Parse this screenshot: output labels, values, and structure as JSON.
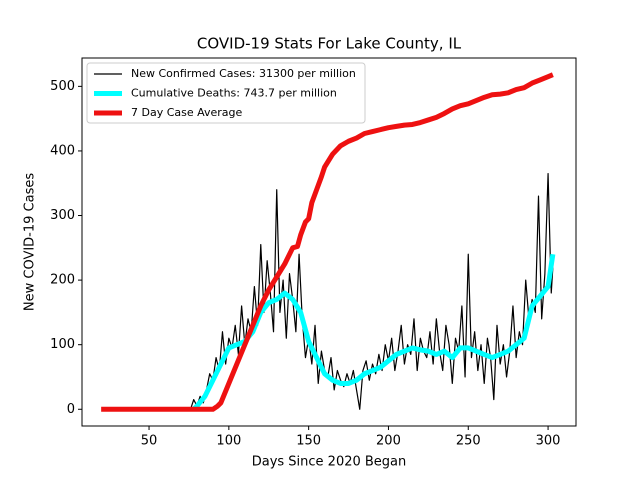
{
  "chart_data": {
    "type": "line",
    "title": "COVID-19 Stats For Lake County, IL",
    "x_label": "Days Since 2020 Began",
    "y_label": "New COVID-19 Cases",
    "xlim": [
      8,
      317.5
    ],
    "ylim": [
      -25.9,
      543.9
    ],
    "xticks": [
      50,
      100,
      150,
      200,
      250,
      300
    ],
    "yticks": [
      0,
      100,
      200,
      300,
      400,
      500
    ],
    "legend": "upper left",
    "series": [
      {
        "name": "New Confirmed Cases: 31300 per million",
        "color": "#000000",
        "width": 1.2,
        "x": [
          76,
          78,
          80,
          82,
          84,
          86,
          88,
          90,
          92,
          94,
          96,
          98,
          100,
          102,
          104,
          106,
          108,
          110,
          112,
          114,
          116,
          118,
          120,
          122,
          124,
          126,
          128,
          130,
          132,
          134,
          136,
          138,
          140,
          142,
          144,
          146,
          148,
          150,
          152,
          154,
          156,
          158,
          160,
          162,
          164,
          166,
          168,
          170,
          172,
          174,
          176,
          178,
          180,
          182,
          184,
          186,
          188,
          190,
          192,
          194,
          196,
          198,
          200,
          202,
          204,
          206,
          208,
          210,
          212,
          214,
          216,
          218,
          220,
          222,
          224,
          226,
          228,
          230,
          232,
          234,
          236,
          238,
          240,
          242,
          244,
          246,
          248,
          250,
          252,
          254,
          256,
          258,
          260,
          262,
          264,
          266,
          268,
          270,
          272,
          274,
          276,
          278,
          280,
          282,
          284,
          286,
          288,
          290,
          292,
          294,
          296,
          298,
          300,
          302,
          303
        ],
        "values": [
          0,
          15,
          5,
          20,
          10,
          30,
          55,
          45,
          80,
          60,
          120,
          70,
          110,
          95,
          130,
          85,
          160,
          100,
          140,
          120,
          190,
          130,
          255,
          150,
          230,
          180,
          120,
          340,
          150,
          200,
          110,
          210,
          170,
          120,
          240,
          140,
          80,
          110,
          70,
          130,
          40,
          90,
          60,
          50,
          80,
          30,
          60,
          45,
          35,
          55,
          40,
          60,
          30,
          0,
          60,
          75,
          45,
          70,
          55,
          85,
          60,
          100,
          75,
          110,
          60,
          90,
          130,
          70,
          100,
          85,
          140,
          60,
          110,
          90,
          80,
          120,
          70,
          140,
          90,
          60,
          130,
          100,
          40,
          110,
          90,
          160,
          50,
          240,
          80,
          120,
          60,
          100,
          40,
          110,
          80,
          15,
          130,
          70,
          100,
          50,
          90,
          160,
          80,
          120,
          100,
          200,
          140,
          170,
          150,
          330,
          140,
          210,
          365,
          180,
          220
        ]
      },
      {
        "name": "Cumulative Deaths: 743.7 per million",
        "color": "#00ffff",
        "width": 5,
        "x": [
          78,
          80,
          85,
          90,
          95,
          100,
          105,
          110,
          115,
          120,
          125,
          130,
          135,
          140,
          145,
          150,
          155,
          160,
          165,
          170,
          175,
          180,
          185,
          190,
          195,
          200,
          205,
          210,
          215,
          220,
          225,
          230,
          235,
          240,
          245,
          250,
          255,
          260,
          265,
          270,
          275,
          280,
          285,
          290,
          295,
          300,
          303
        ],
        "values": [
          0,
          5,
          20,
          45,
          70,
          95,
          100,
          105,
          120,
          150,
          165,
          170,
          180,
          170,
          150,
          105,
          80,
          55,
          45,
          40,
          40,
          45,
          55,
          60,
          65,
          75,
          85,
          90,
          95,
          92,
          90,
          85,
          90,
          80,
          95,
          95,
          90,
          85,
          80,
          85,
          90,
          100,
          110,
          160,
          175,
          190,
          240
        ]
      },
      {
        "name": "7 Day Case Average",
        "color": "#ee1111",
        "width": 5,
        "x": [
          20,
          40,
          60,
          80,
          90,
          93,
          95,
          100,
          105,
          110,
          115,
          120,
          125,
          130,
          135,
          140,
          143,
          145,
          148,
          150,
          152,
          155,
          158,
          160,
          165,
          170,
          175,
          180,
          185,
          190,
          195,
          200,
          205,
          210,
          215,
          220,
          225,
          230,
          235,
          240,
          245,
          250,
          255,
          260,
          265,
          270,
          275,
          280,
          285,
          290,
          295,
          300,
          303
        ],
        "values": [
          0,
          0,
          0,
          0,
          0,
          5,
          10,
          40,
          70,
          100,
          130,
          160,
          185,
          205,
          225,
          250,
          252,
          270,
          290,
          295,
          320,
          340,
          360,
          375,
          395,
          408,
          415,
          420,
          427,
          430,
          433,
          436,
          438,
          440,
          441,
          444,
          448,
          452,
          458,
          465,
          470,
          473,
          478,
          483,
          487,
          488,
          490,
          495,
          498,
          505,
          510,
          515,
          518
        ]
      }
    ]
  }
}
